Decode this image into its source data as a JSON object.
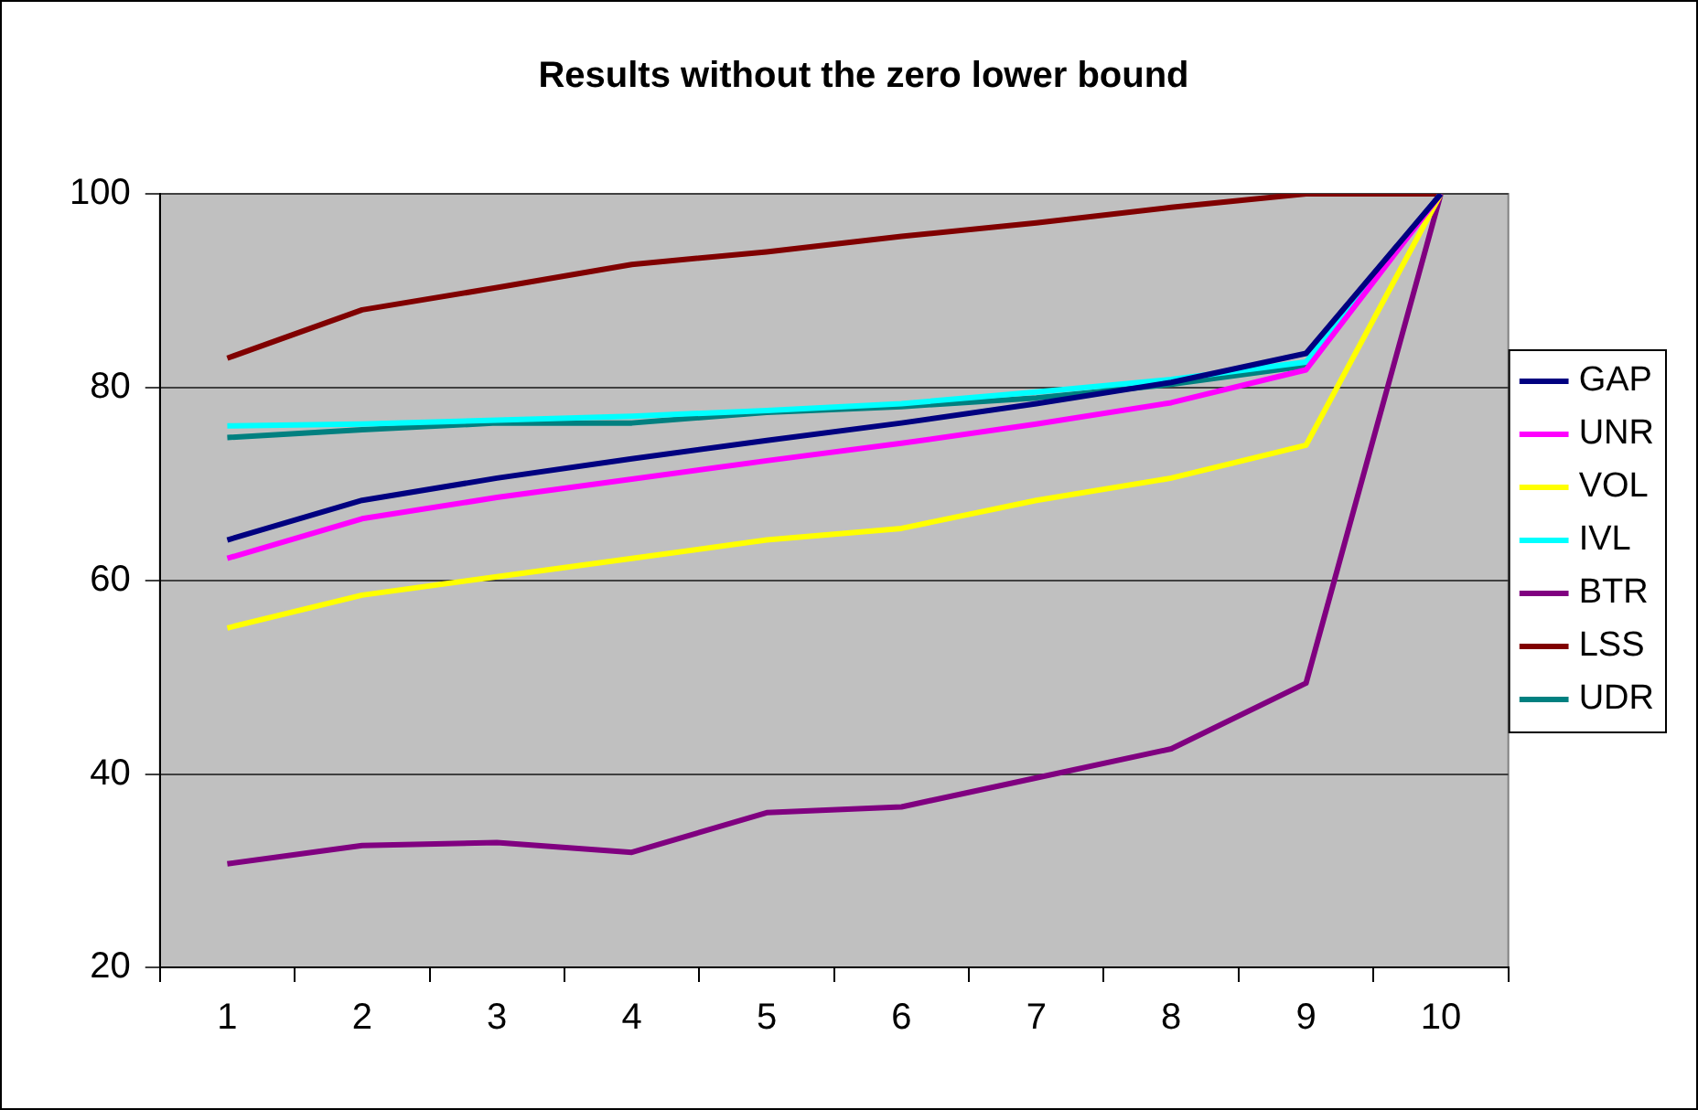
{
  "chart_data": {
    "type": "line",
    "title": "Results without the zero lower bound",
    "categories": [
      "1",
      "2",
      "3",
      "4",
      "5",
      "6",
      "7",
      "8",
      "9",
      "10"
    ],
    "series": [
      {
        "name": "GAP",
        "color": "#000080",
        "values": [
          64.2,
          68.3,
          70.6,
          72.6,
          74.5,
          76.3,
          78.3,
          80.5,
          83.5,
          100
        ]
      },
      {
        "name": "UNR",
        "color": "#ff00ff",
        "values": [
          62.3,
          66.4,
          68.6,
          70.5,
          72.4,
          74.2,
          76.2,
          78.4,
          81.8,
          100
        ]
      },
      {
        "name": "VOL",
        "color": "#ffff00",
        "values": [
          55.1,
          58.5,
          60.4,
          62.3,
          64.2,
          65.4,
          68.3,
          70.6,
          74,
          100
        ]
      },
      {
        "name": "IVL",
        "color": "#00ffff",
        "values": [
          76,
          76.2,
          76.6,
          77,
          77.6,
          78.3,
          79.5,
          80.8,
          82.6,
          100
        ]
      },
      {
        "name": "BTR",
        "color": "#800080",
        "values": [
          30.7,
          32.6,
          32.9,
          31.9,
          36,
          36.6,
          39.6,
          42.6,
          49.4,
          100
        ]
      },
      {
        "name": "LSS",
        "color": "#800000",
        "values": [
          83,
          88,
          90.3,
          92.7,
          94,
          95.6,
          97,
          98.6,
          100,
          100
        ]
      },
      {
        "name": "UDR",
        "color": "#008080",
        "values": [
          74.8,
          75.6,
          76.3,
          76.3,
          77.4,
          78,
          78.9,
          80.3,
          82.2,
          100
        ]
      }
    ],
    "ylim": [
      20,
      100
    ],
    "yticks": [
      20,
      40,
      60,
      80,
      100
    ],
    "grid": "y",
    "legend": "right",
    "marker": "none",
    "line_style": "solid"
  }
}
